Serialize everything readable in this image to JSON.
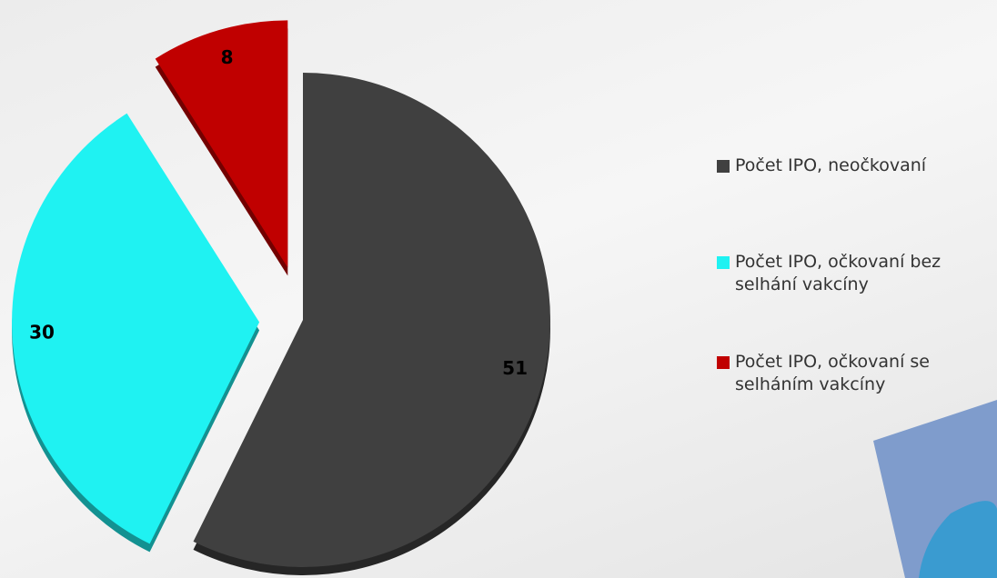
{
  "chart_data": {
    "type": "pie",
    "categories": [
      "Počet IPO, neočkovaní",
      "Počet IPO, očkovaní bez selhání vakcíny",
      "Počet IPO, očkovaní se selháním vakcíny"
    ],
    "values": [
      51,
      30,
      8
    ],
    "colors": [
      "#404040",
      "#1ff2f2",
      "#c00000"
    ],
    "legend": "right"
  }
}
